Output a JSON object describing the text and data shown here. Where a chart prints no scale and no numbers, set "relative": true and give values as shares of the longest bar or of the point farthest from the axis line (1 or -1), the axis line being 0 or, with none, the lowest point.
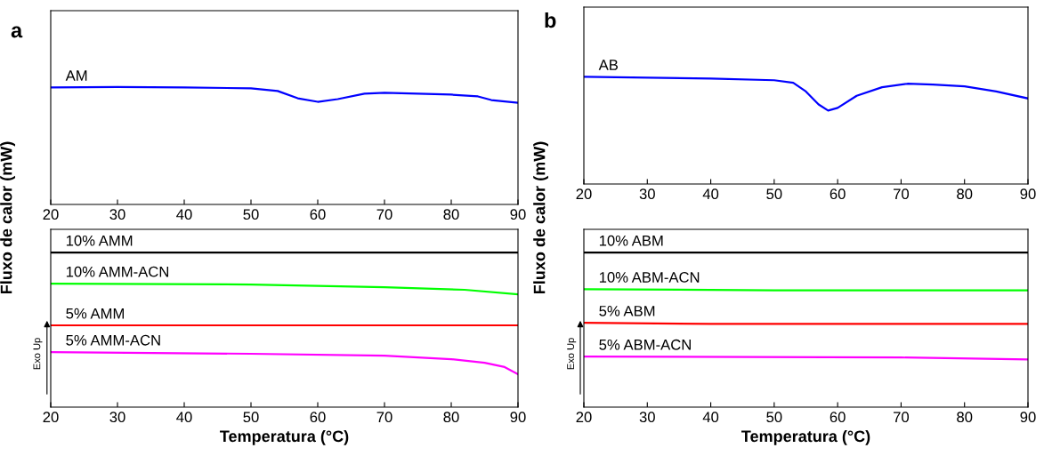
{
  "chart_data": [
    {
      "type": "line",
      "title": "a",
      "ylabel": "Fluxo de calor (mW)",
      "relative": true,
      "xlim": [
        20,
        90
      ],
      "xticks": [
        20,
        30,
        40,
        50,
        60,
        70,
        80,
        90
      ],
      "legend": false,
      "grid": false,
      "series": [
        {
          "name": "AM",
          "color": "#0000ff",
          "x": [
            20,
            30,
            40,
            50,
            54,
            57,
            60,
            63,
            67,
            70,
            75,
            80,
            84,
            86,
            90
          ],
          "values": [
            0.996,
            1,
            0.996,
            0.989,
            0.966,
            0.904,
            0.874,
            0.897,
            0.943,
            0.95,
            0.943,
            0.935,
            0.92,
            0.889,
            0.866
          ]
        }
      ]
    },
    {
      "type": "line",
      "xlabel": "Temperatura (°C)",
      "relative": true,
      "xlim": [
        20,
        90
      ],
      "xticks": [
        20,
        30,
        40,
        50,
        60,
        70,
        80,
        90
      ],
      "legend": false,
      "grid": false,
      "annotations": [
        "Exo Up"
      ],
      "series": [
        {
          "name": "10% AMM",
          "color": "#000000",
          "x": [
            20,
            90
          ],
          "values": [
            1,
            1
          ]
        },
        {
          "name": "10% AMM-ACN",
          "color": "#00ff00",
          "x": [
            20,
            50,
            70,
            82,
            90
          ],
          "values": [
            0.799,
            0.793,
            0.776,
            0.759,
            0.73
          ]
        },
        {
          "name": "5% AMM",
          "color": "#ff0000",
          "x": [
            20,
            90
          ],
          "values": [
            0.529,
            0.529
          ]
        },
        {
          "name": "5% AMM-ACN",
          "color": "#ff00ff",
          "x": [
            20,
            50,
            70,
            80,
            85,
            88,
            90
          ],
          "values": [
            0.356,
            0.345,
            0.333,
            0.31,
            0.287,
            0.259,
            0.213
          ]
        }
      ]
    },
    {
      "type": "line",
      "title": "b",
      "ylabel": "Fluxo de calor (mW)",
      "relative": true,
      "xlim": [
        20,
        90
      ],
      "xticks": [
        20,
        30,
        40,
        50,
        60,
        70,
        80,
        90
      ],
      "legend": false,
      "grid": false,
      "series": [
        {
          "name": "AB",
          "color": "#0000ff",
          "x": [
            20,
            40,
            50,
            53,
            55,
            57,
            58.5,
            60,
            63,
            67,
            71,
            75,
            80,
            85,
            90
          ],
          "values": [
            1,
            0.984,
            0.968,
            0.944,
            0.863,
            0.742,
            0.685,
            0.71,
            0.823,
            0.903,
            0.935,
            0.927,
            0.911,
            0.863,
            0.798
          ]
        }
      ]
    },
    {
      "type": "line",
      "xlabel": "Temperatura (°C)",
      "relative": true,
      "xlim": [
        20,
        90
      ],
      "xticks": [
        20,
        30,
        40,
        50,
        60,
        70,
        80,
        90
      ],
      "legend": false,
      "grid": false,
      "annotations": [
        "Exo Up"
      ],
      "series": [
        {
          "name": "10% ABM",
          "color": "#000000",
          "x": [
            20,
            90
          ],
          "values": [
            1,
            1
          ]
        },
        {
          "name": "10% ABM-ACN",
          "color": "#00ff00",
          "x": [
            20,
            50,
            90
          ],
          "values": [
            0.763,
            0.756,
            0.756
          ]
        },
        {
          "name": "5% ABM",
          "color": "#ff0000",
          "x": [
            20,
            40,
            90
          ],
          "values": [
            0.545,
            0.538,
            0.538
          ]
        },
        {
          "name": "5% ABM-ACN",
          "color": "#ff00ff",
          "x": [
            20,
            70,
            90
          ],
          "values": [
            0.327,
            0.321,
            0.308
          ]
        }
      ]
    }
  ]
}
